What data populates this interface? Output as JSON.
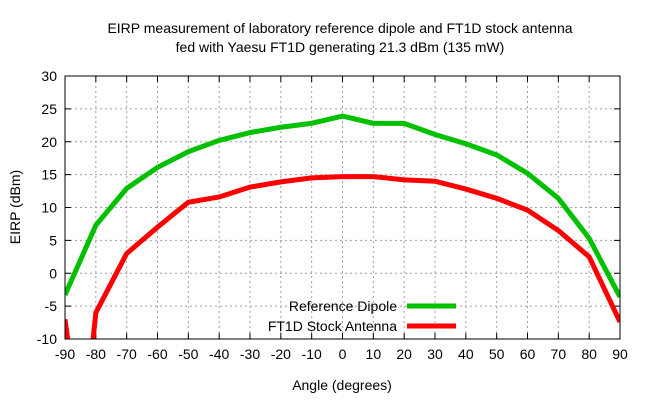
{
  "chart_data": {
    "type": "line",
    "title": [
      "EIRP measurement of laboratory reference dipole and FT1D stock antenna",
      "fed with Yaesu FT1D generating 21.3 dBm (135 mW)"
    ],
    "xlabel": "Angle (degrees)",
    "ylabel": "EIRP (dBm)",
    "xlim": [
      -90,
      90
    ],
    "ylim": [
      -10,
      30
    ],
    "xticks": [
      -90,
      -80,
      -70,
      -60,
      -50,
      -40,
      -30,
      -20,
      -10,
      0,
      10,
      20,
      30,
      40,
      50,
      60,
      70,
      80,
      90
    ],
    "yticks": [
      -10,
      -5,
      0,
      5,
      10,
      15,
      20,
      25,
      30
    ],
    "grid": true,
    "legend_position": "bottom-center",
    "series": [
      {
        "name": "Reference Dipole",
        "color": "#00c000",
        "x": [
          -90,
          -80,
          -70,
          -60,
          -50,
          -40,
          -30,
          -20,
          -10,
          0,
          10,
          20,
          30,
          40,
          50,
          60,
          70,
          80,
          90
        ],
        "y": [
          -3.3,
          7.3,
          12.9,
          16.1,
          18.5,
          20.2,
          21.4,
          22.2,
          22.8,
          23.9,
          22.8,
          22.8,
          21.1,
          19.7,
          18.0,
          15.2,
          11.4,
          5.3,
          -3.6
        ]
      },
      {
        "name": "FT1D Stock Antenna",
        "color": "#ff0000",
        "x": [
          -90,
          -89,
          -81,
          -80,
          -70,
          -60,
          -50,
          -40,
          -30,
          -20,
          -10,
          0,
          10,
          20,
          30,
          40,
          50,
          60,
          70,
          80,
          90
        ],
        "y": [
          -7.0,
          -10.5,
          -10.5,
          -6.0,
          3.0,
          7.0,
          10.8,
          11.6,
          13.1,
          13.9,
          14.5,
          14.7,
          14.7,
          14.2,
          14.0,
          12.8,
          11.4,
          9.6,
          6.5,
          2.5,
          -7.4
        ]
      }
    ]
  }
}
